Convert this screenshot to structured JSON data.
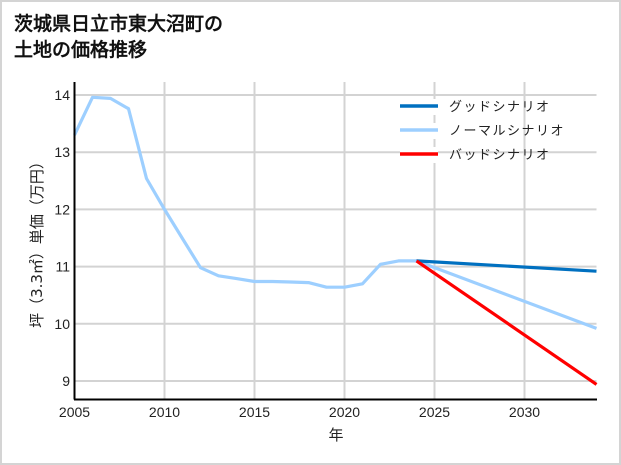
{
  "title": {
    "line1": "茨城県日立市東大沼町の",
    "line2": "土地の価格推移"
  },
  "chart_data": {
    "type": "line",
    "title": "茨城県日立市東大沼町の土地の価格推移",
    "xlabel": "年",
    "ylabel": "坪（3.3㎡）単価（万円）",
    "xlim": [
      2005,
      2034
    ],
    "ylim": [
      8.7,
      14.2
    ],
    "x_ticks": [
      2005,
      2010,
      2015,
      2020,
      2025,
      2030
    ],
    "y_ticks": [
      9,
      10,
      11,
      12,
      13,
      14
    ],
    "grid": true,
    "legend_position": "upper right",
    "series": [
      {
        "name": "グッドシナリオ",
        "color": "#0070C0",
        "x": [
          2024,
          2034
        ],
        "values": [
          11.1,
          10.92
        ]
      },
      {
        "name": "ノーマルシナリオ",
        "color": "#9DCFFF",
        "x": [
          2005,
          2006,
          2007,
          2008,
          2009,
          2010,
          2011,
          2012,
          2013,
          2014,
          2015,
          2016,
          2017,
          2018,
          2019,
          2020,
          2021,
          2022,
          2023,
          2024,
          2034
        ],
        "values": [
          13.3,
          13.96,
          13.94,
          13.76,
          12.54,
          12.0,
          11.49,
          10.98,
          10.84,
          10.79,
          10.74,
          10.74,
          10.73,
          10.72,
          10.64,
          10.64,
          10.7,
          11.04,
          11.1,
          11.1,
          9.92
        ]
      },
      {
        "name": "バッドシナリオ",
        "color": "#FF0000",
        "x": [
          2024,
          2034
        ],
        "values": [
          11.1,
          8.94
        ]
      }
    ]
  }
}
